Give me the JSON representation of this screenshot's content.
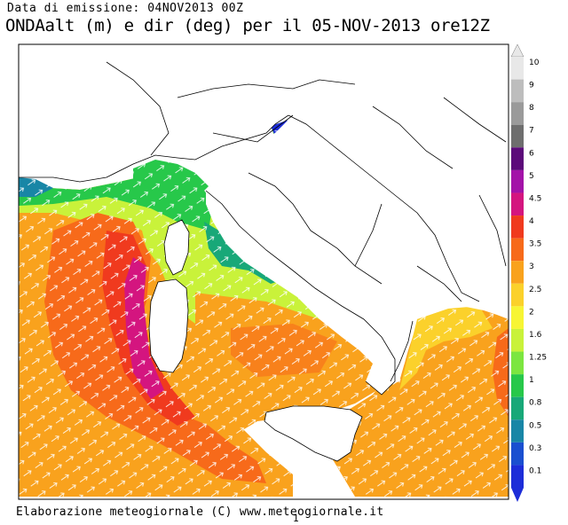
{
  "header": {
    "issue": "Data di emissione: 04NOV2013 00Z",
    "title": "ONDAalt (m) e dir (deg) per il 05-NOV-2013 ore12Z"
  },
  "footer": {
    "credit": "Elaborazione meteogiornale (C) www.meteogiornale.it",
    "page_number": "1"
  },
  "legend": {
    "unit": "m",
    "levels": [
      {
        "label": "10",
        "color": "#e8e8e8"
      },
      {
        "label": "9",
        "color": "#bdbdbd"
      },
      {
        "label": "8",
        "color": "#9a9a9a"
      },
      {
        "label": "7",
        "color": "#6e6e6e"
      },
      {
        "label": "6",
        "color": "#5c0a7a"
      },
      {
        "label": "5",
        "color": "#a313a8"
      },
      {
        "label": "4.5",
        "color": "#d4157f"
      },
      {
        "label": "4",
        "color": "#f03a1e"
      },
      {
        "label": "3.5",
        "color": "#f76a1a"
      },
      {
        "label": "3",
        "color": "#f9a21d"
      },
      {
        "label": "2.5",
        "color": "#fbd12b"
      },
      {
        "label": "2",
        "color": "#f7f534"
      },
      {
        "label": "1.6",
        "color": "#c9f23a"
      },
      {
        "label": "1.25",
        "color": "#7ce640"
      },
      {
        "label": "1",
        "color": "#27c84a"
      },
      {
        "label": "0.8",
        "color": "#18a878"
      },
      {
        "label": "0.5",
        "color": "#1886a6"
      },
      {
        "label": "0.3",
        "color": "#1a4fd0"
      },
      {
        "label": "0.1",
        "color": "#1d2dd8"
      }
    ],
    "top_color": "#e8e8e8",
    "bottom_color": "#1d2dd8"
  }
}
